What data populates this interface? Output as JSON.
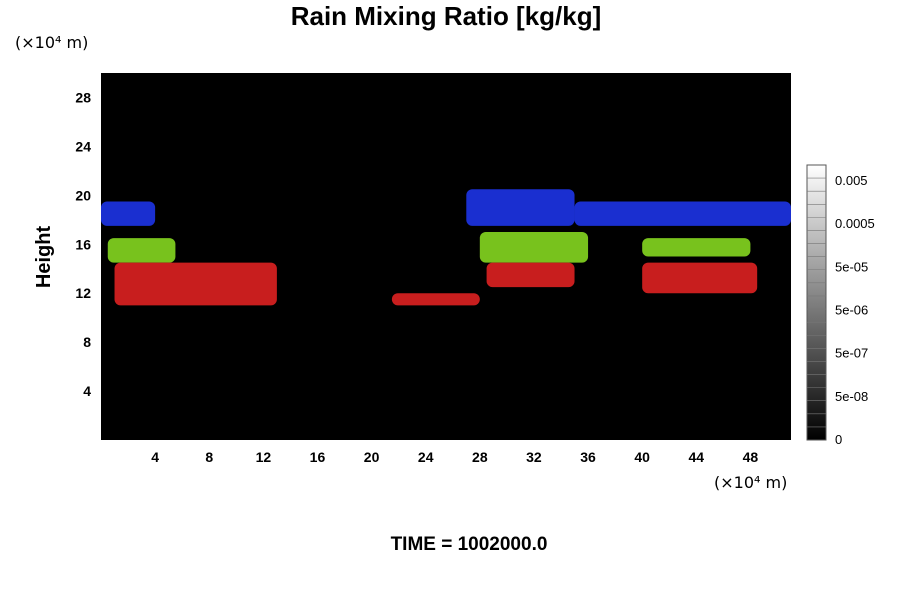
{
  "chart_data": {
    "type": "heatmap",
    "title": "Rain Mixing Ratio [kg/kg]",
    "xlabel": "",
    "ylabel": "Height",
    "x_unit": "(×10⁴ m)",
    "y_unit": "(×10⁴ m)",
    "xlim": [
      0,
      51
    ],
    "ylim": [
      0,
      30
    ],
    "x_ticks": [
      4,
      8,
      12,
      16,
      20,
      24,
      28,
      32,
      36,
      40,
      44,
      48
    ],
    "y_ticks": [
      4,
      8,
      12,
      16,
      20,
      24,
      28
    ],
    "background_color": "#000000",
    "colorbar": {
      "labels": [
        "0.005",
        "0.0005",
        "5e-05",
        "5e-06",
        "5e-07",
        "5e-08",
        "0"
      ],
      "gradient": [
        "#000000",
        "#ffffff"
      ]
    },
    "regions": [
      {
        "color": "#1a2fd0",
        "x": [
          0,
          4
        ],
        "y": [
          17.5,
          19.5
        ]
      },
      {
        "color": "#1a2fd0",
        "x": [
          27,
          35
        ],
        "y": [
          17.5,
          20.5
        ]
      },
      {
        "color": "#1a2fd0",
        "x": [
          35,
          51
        ],
        "y": [
          17.5,
          19.5
        ]
      },
      {
        "color": "#78c21d",
        "x": [
          0.5,
          5.5
        ],
        "y": [
          14.5,
          16.5
        ]
      },
      {
        "color": "#78c21d",
        "x": [
          28,
          36
        ],
        "y": [
          14.5,
          17
        ]
      },
      {
        "color": "#78c21d",
        "x": [
          40,
          48
        ],
        "y": [
          15,
          16.5
        ]
      },
      {
        "color": "#c81e1e",
        "x": [
          1,
          13
        ],
        "y": [
          11,
          14.5
        ]
      },
      {
        "color": "#c81e1e",
        "x": [
          28.5,
          35
        ],
        "y": [
          12.5,
          14.5
        ]
      },
      {
        "color": "#c81e1e",
        "x": [
          40,
          48.5
        ],
        "y": [
          12,
          14.5
        ]
      },
      {
        "color": "#c81e1e",
        "x": [
          21.5,
          28
        ],
        "y": [
          11,
          12
        ]
      }
    ]
  },
  "footer": {
    "time_label": "TIME = 1002000.0"
  }
}
